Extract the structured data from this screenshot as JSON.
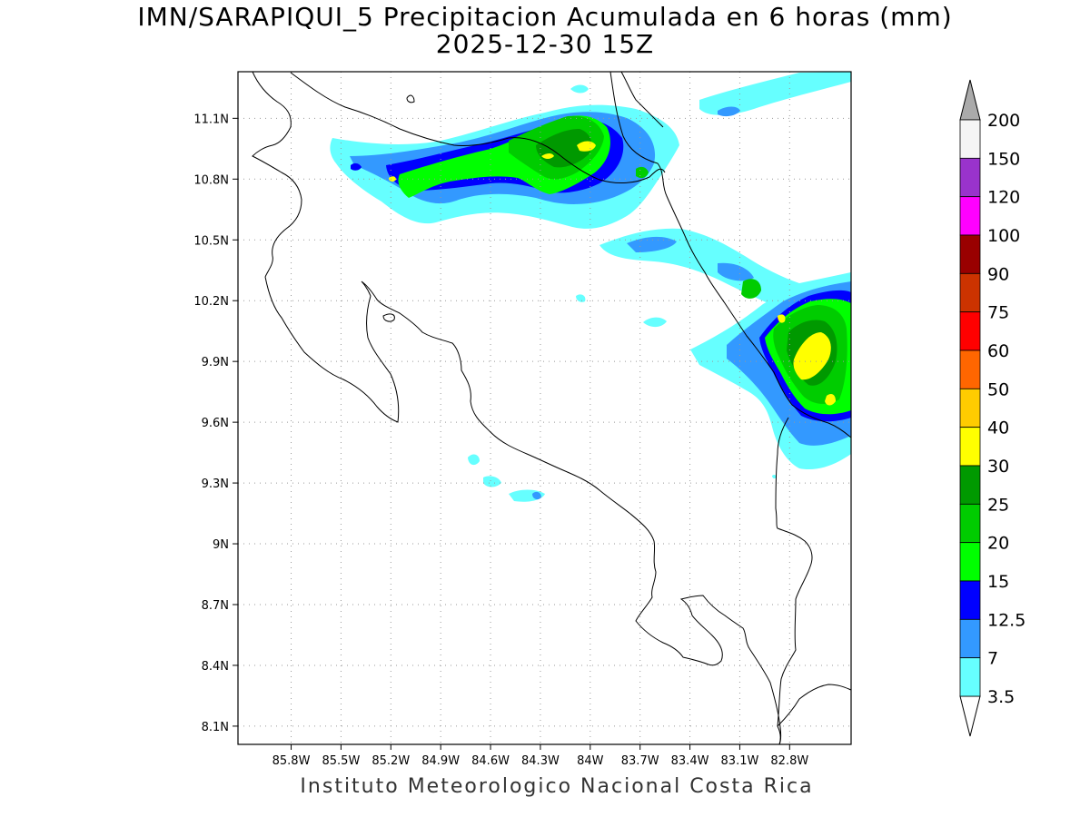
{
  "title": "IMN/SARAPIQUI_5 Precipitacion Acumulada en 6 horas (mm)",
  "subtitle": "2025-12-30 15Z",
  "credit": "Instituto Meteorologico Nacional Costa Rica",
  "map": {
    "lon_range": [
      -86.12,
      -82.43
    ],
    "lat_range": [
      8.01,
      11.33
    ],
    "lat_ticks": [
      "11.1N",
      "10.8N",
      "10.5N",
      "10.2N",
      "9.9N",
      "9.6N",
      "9.3N",
      "9N",
      "8.7N",
      "8.4N",
      "8.1N"
    ],
    "lat_values": [
      11.1,
      10.8,
      10.5,
      10.2,
      9.9,
      9.6,
      9.3,
      9.0,
      8.7,
      8.4,
      8.1
    ],
    "lon_ticks": [
      "85.8W",
      "85.5W",
      "85.2W",
      "84.9W",
      "84.6W",
      "84.3W",
      "84W",
      "83.7W",
      "83.4W",
      "83.1W",
      "82.8W"
    ],
    "lon_values": [
      -85.8,
      -85.5,
      -85.2,
      -84.9,
      -84.6,
      -84.3,
      -84.0,
      -83.7,
      -83.4,
      -83.1,
      -82.8
    ],
    "gridlines": true
  },
  "colorbar": {
    "labels": [
      "3.5",
      "7",
      "12.5",
      "15",
      "20",
      "25",
      "30",
      "40",
      "50",
      "60",
      "75",
      "90",
      "100",
      "120",
      "150",
      "200"
    ],
    "colors": [
      "#66ffff",
      "#3399ff",
      "#0000ff",
      "#00ff00",
      "#00cc00",
      "#009900",
      "#ffff00",
      "#ffcc00",
      "#ff6600",
      "#ff0000",
      "#cc3300",
      "#990000",
      "#ff00ff",
      "#9933cc",
      "#f5f5f5"
    ],
    "arrow_top": "#aaaaaa",
    "arrow_bottom": "#ffffff"
  },
  "colors": {
    "coastline": "#000000",
    "grid": "#999999"
  }
}
